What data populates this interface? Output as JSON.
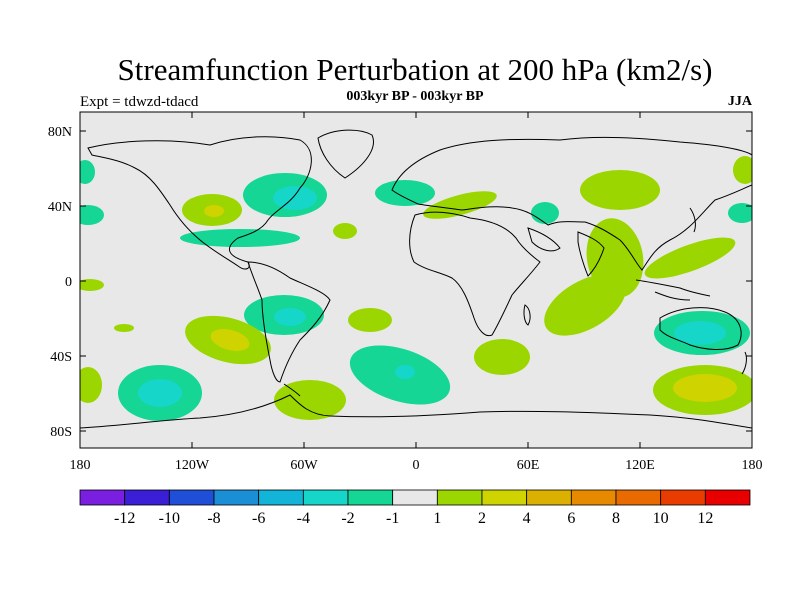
{
  "title": "Streamfunction Perturbation at 200 hPa (km2/s)",
  "subtitle": "003kyr BP - 003kyr BP",
  "left_label": "Expt = tdwzd-tdacd",
  "right_label": "JJA",
  "lat_labels": [
    "80N",
    "40N",
    "0",
    "40S",
    "80S"
  ],
  "lon_labels": [
    "180",
    "120W",
    "60W",
    "0",
    "60E",
    "120E",
    "180"
  ],
  "colorbar": {
    "colors": [
      "#7a1fe0",
      "#3a1fd6",
      "#1f4fd6",
      "#1a8fd6",
      "#12b5d8",
      "#15d6c8",
      "#15d694",
      "#e8e8e8",
      "#9bd600",
      "#cfd400",
      "#dcb000",
      "#e88a00",
      "#e86a00",
      "#e83c00",
      "#e80000"
    ],
    "labels": [
      "-12",
      "-10",
      "-8",
      "-6",
      "-4",
      "-2",
      "-1",
      "1",
      "2",
      "4",
      "6",
      "8",
      "10",
      "12"
    ]
  },
  "colors": {
    "background_field": "#e8e8e8",
    "neg_1": "#15d694",
    "neg_2": "#15d6c8",
    "neg_4": "#12b5d8",
    "pos_1": "#9bd600",
    "pos_2": "#cfd400"
  }
}
